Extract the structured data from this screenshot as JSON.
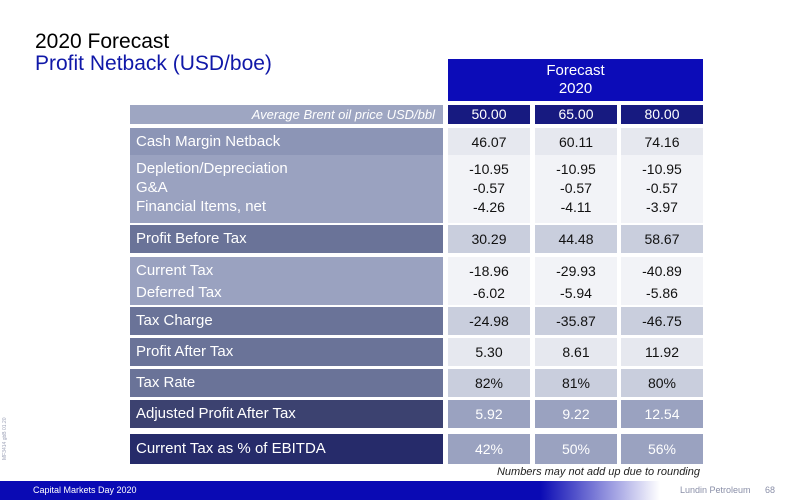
{
  "header": {
    "title": "2020 Forecast",
    "subtitle": "Profit Netback (USD/boe)"
  },
  "forecast_header": {
    "line1": "Forecast",
    "line2": "2020"
  },
  "brent": {
    "label": "Average Brent oil price USD/bbl",
    "prices": [
      "50.00",
      "65.00",
      "80.00"
    ]
  },
  "rows": {
    "cash_margin": {
      "label": "Cash Margin Netback",
      "values": [
        "46.07",
        "60.11",
        "74.16"
      ]
    },
    "depletion": {
      "label": "Depletion/Depreciation",
      "values": [
        "-10.95",
        "-10.95",
        "-10.95"
      ]
    },
    "ga": {
      "label": "G&A",
      "values": [
        "-0.57",
        "-0.57",
        "-0.57"
      ]
    },
    "financial": {
      "label": "Financial Items, net",
      "values": [
        "-4.26",
        "-4.11",
        "-3.97"
      ]
    },
    "pbt": {
      "label": "Profit Before Tax",
      "values": [
        "30.29",
        "44.48",
        "58.67"
      ]
    },
    "current_tax": {
      "label": "Current Tax",
      "values": [
        "-18.96",
        "-29.93",
        "-40.89"
      ]
    },
    "deferred_tax": {
      "label": "Deferred Tax",
      "values": [
        "-6.02",
        "-5.94",
        "-5.86"
      ]
    },
    "tax_charge": {
      "label": "Tax Charge",
      "values": [
        "-24.98",
        "-35.87",
        "-46.75"
      ]
    },
    "pat": {
      "label": "Profit After Tax",
      "values": [
        "5.30",
        "8.61",
        "11.92"
      ]
    },
    "tax_rate": {
      "label": "Tax Rate",
      "values": [
        "82%",
        "81%",
        "80%"
      ]
    },
    "adj_pat": {
      "label": "Adjusted Profit After Tax",
      "values": [
        "5.92",
        "9.22",
        "12.54"
      ]
    },
    "ct_ebitda": {
      "label": "Current Tax as % of EBITDA",
      "values": [
        "42%",
        "50%",
        "56%"
      ]
    }
  },
  "footnote": "Numbers may not add up due to rounding",
  "side_note": "MF3414 gbB 01.20",
  "footer": {
    "event": "Capital Markets Day 2020",
    "company": "Lundin Petroleum",
    "page": "68"
  },
  "colors": {
    "accent_blue": "#0c0cb8",
    "subtitle_blue": "#1018a8",
    "price_header": "#171a80"
  }
}
